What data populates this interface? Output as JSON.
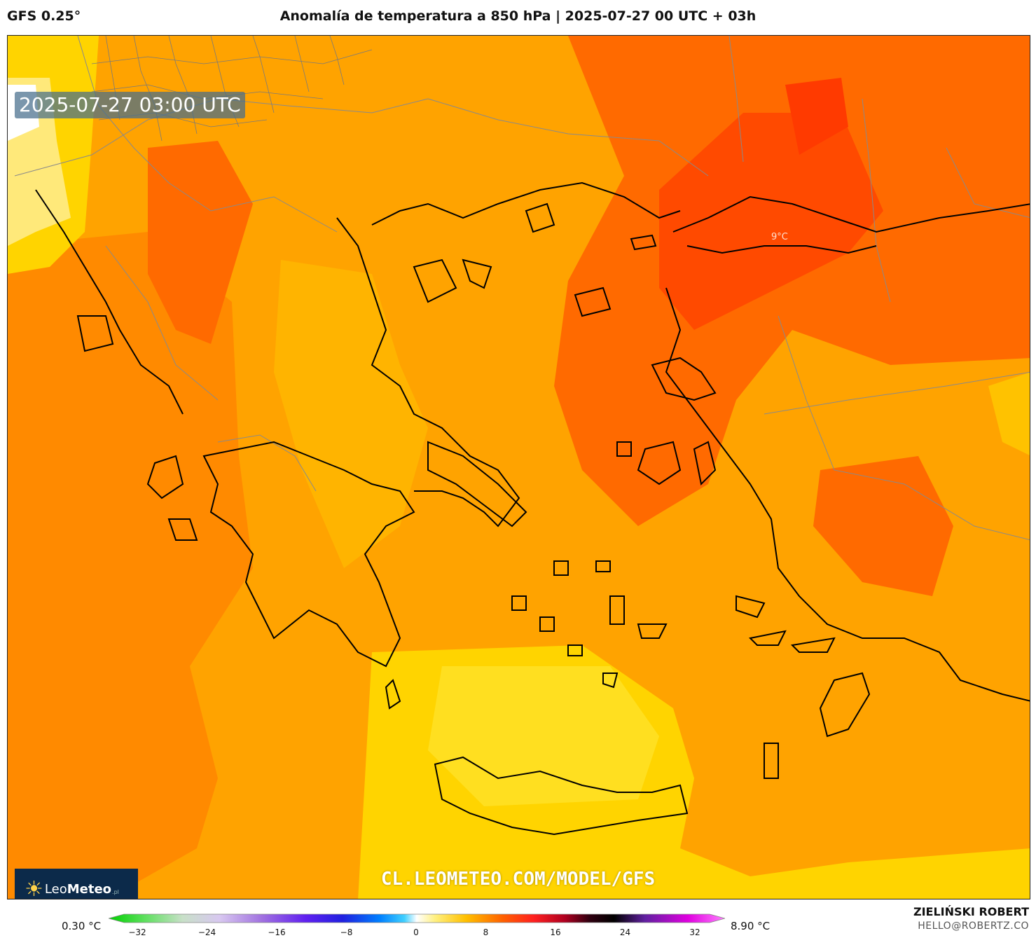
{
  "header": {
    "model": "GFS 0.25°",
    "title": "Anomalía de temperatura a 850 hPa | 2025-07-27 00 UTC + 03h"
  },
  "map": {
    "timestamp": "2025-07-27 03:00 UTC",
    "contour_label": "9°C",
    "url": "CL.LEOMETEO.COM/MODEL/GFS",
    "fill_colors": [
      "#fff3b0",
      "#ffe14a",
      "#ffc200",
      "#ffa300",
      "#ff8a00",
      "#ff6a00",
      "#ff4a00"
    ]
  },
  "logo": {
    "brand_light": "Leo",
    "brand_bold": "Meteo",
    "suffix": ".pl"
  },
  "colorbar": {
    "min_label": "0.30 °C",
    "max_label": "8.90 °C",
    "ticks": [
      "−32",
      "−24",
      "−16",
      "−8",
      "0",
      "8",
      "16",
      "24",
      "32"
    ]
  },
  "credit": {
    "author": "ZIELIŃSKI ROBERT",
    "email": "HELLO@ROBERTZ.CO"
  }
}
